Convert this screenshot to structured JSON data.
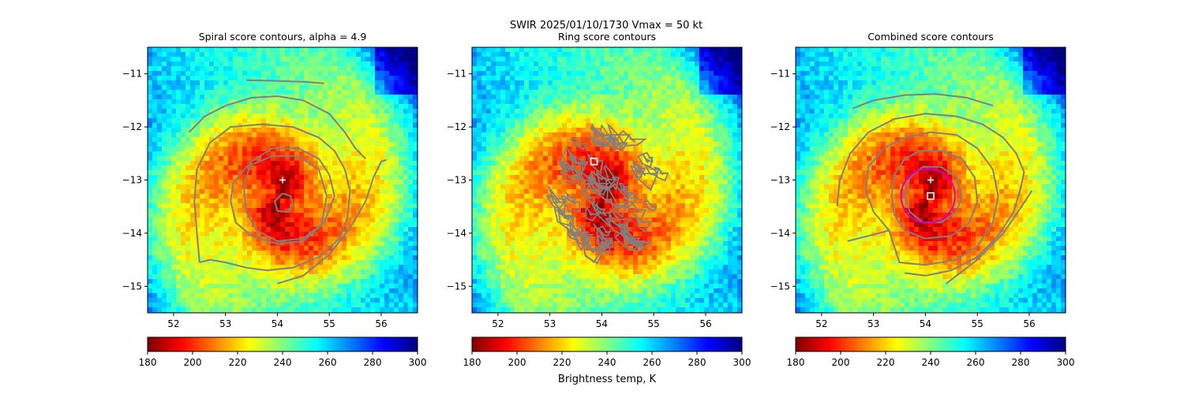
{
  "figure": {
    "suptitle_line1": "SWIR  2025/01/10/1730    Vmax = 50 kt",
    "colorbar_label": "Brightness temp, K"
  },
  "colormap": {
    "name": "jet_r",
    "stops": [
      "#800000",
      "#ff0000",
      "#ff8000",
      "#ffff00",
      "#80ff80",
      "#00ffff",
      "#0080ff",
      "#0000ff",
      "#000080"
    ]
  },
  "colors": {
    "contour": "#808080",
    "marker": "#ffffff",
    "circle": "#cc00cc",
    "axes": "#000000"
  },
  "chart_data": [
    {
      "type": "heatmap",
      "title": "Spiral score contours, alpha =  4.9",
      "xlim": [
        51.5,
        56.7
      ],
      "ylim": [
        -15.5,
        -10.5
      ],
      "xticks": [
        52,
        53,
        54,
        55,
        56
      ],
      "yticks": [
        -11,
        -12,
        -13,
        -14,
        -15
      ],
      "center_marker": {
        "x": 54.1,
        "y": -13.0
      },
      "colorbar": {
        "range": [
          180,
          300
        ],
        "ticks": [
          180,
          200,
          220,
          240,
          260,
          280,
          300
        ]
      },
      "contours": [
        [
          [
            53.4,
            -11.12
          ],
          [
            53.9,
            -11.13
          ],
          [
            54.5,
            -11.15
          ],
          [
            54.9,
            -11.18
          ]
        ],
        [
          [
            52.3,
            -12.1
          ],
          [
            52.6,
            -11.8
          ],
          [
            53.0,
            -11.6
          ],
          [
            53.5,
            -11.45
          ],
          [
            54.0,
            -11.42
          ],
          [
            54.5,
            -11.5
          ],
          [
            55.0,
            -11.75
          ],
          [
            55.3,
            -12.1
          ],
          [
            55.5,
            -12.4
          ],
          [
            55.7,
            -12.6
          ]
        ],
        [
          [
            52.5,
            -14.55
          ],
          [
            52.7,
            -14.5
          ],
          [
            53.0,
            -14.55
          ],
          [
            53.4,
            -14.65
          ],
          [
            53.8,
            -14.7
          ],
          [
            54.3,
            -14.65
          ],
          [
            54.8,
            -14.45
          ],
          [
            55.2,
            -14.1
          ],
          [
            55.35,
            -13.7
          ],
          [
            55.4,
            -13.2
          ],
          [
            55.3,
            -12.8
          ],
          [
            55.1,
            -12.45
          ],
          [
            54.8,
            -12.2
          ],
          [
            54.3,
            -12.0
          ],
          [
            53.7,
            -11.95
          ],
          [
            53.1,
            -12.0
          ],
          [
            52.7,
            -12.3
          ],
          [
            52.45,
            -12.8
          ],
          [
            52.4,
            -13.4
          ],
          [
            52.45,
            -14.0
          ],
          [
            52.5,
            -14.55
          ]
        ],
        [
          [
            53.4,
            -13.6
          ],
          [
            53.6,
            -13.95
          ],
          [
            54.0,
            -14.15
          ],
          [
            54.5,
            -14.1
          ],
          [
            54.9,
            -13.8
          ],
          [
            55.1,
            -13.3
          ],
          [
            55.0,
            -12.9
          ],
          [
            54.8,
            -12.6
          ],
          [
            54.4,
            -12.4
          ],
          [
            53.9,
            -12.4
          ],
          [
            53.5,
            -12.65
          ],
          [
            53.35,
            -13.1
          ],
          [
            53.4,
            -13.6
          ]
        ],
        [
          [
            53.1,
            -13.4
          ],
          [
            53.2,
            -13.8
          ],
          [
            53.5,
            -14.05
          ],
          [
            54.0,
            -14.2
          ],
          [
            54.5,
            -14.15
          ],
          [
            54.85,
            -13.85
          ],
          [
            54.95,
            -13.3
          ],
          [
            54.8,
            -12.8
          ],
          [
            54.4,
            -12.55
          ],
          [
            53.9,
            -12.55
          ],
          [
            53.4,
            -12.75
          ],
          [
            53.15,
            -13.05
          ],
          [
            53.1,
            -13.4
          ]
        ],
        [
          [
            54.1,
            -13.25
          ],
          [
            54.25,
            -13.3
          ],
          [
            54.3,
            -13.45
          ],
          [
            54.2,
            -13.6
          ],
          [
            54.0,
            -13.58
          ],
          [
            53.95,
            -13.4
          ],
          [
            54.1,
            -13.25
          ]
        ],
        [
          [
            54.0,
            -14.95
          ],
          [
            54.5,
            -14.8
          ],
          [
            55.0,
            -14.4
          ],
          [
            55.4,
            -13.9
          ],
          [
            55.7,
            -13.4
          ],
          [
            55.85,
            -12.95
          ],
          [
            56.0,
            -12.65
          ],
          [
            56.1,
            -12.62
          ]
        ]
      ]
    },
    {
      "type": "heatmap",
      "title": "Ring score contours",
      "xlim": [
        51.5,
        56.7
      ],
      "ylim": [
        -15.5,
        -10.5
      ],
      "xticks": [
        52,
        53,
        54,
        55,
        56
      ],
      "yticks": [
        -11,
        -12,
        -13,
        -14,
        -15
      ],
      "square_marker": {
        "x": 53.85,
        "y": -12.65
      },
      "contour_region": {
        "center": [
          54.15,
          -13.25
        ],
        "radius_x": 1.05,
        "radius_y": 1.15
      },
      "colorbar": {
        "range": [
          180,
          300
        ],
        "ticks": [
          180,
          200,
          220,
          240,
          260,
          280,
          300
        ],
        "label": "Brightness temp, K"
      }
    },
    {
      "type": "heatmap",
      "title": "Combined score contours",
      "xlim": [
        51.5,
        56.7
      ],
      "ylim": [
        -15.5,
        -10.5
      ],
      "xticks": [
        52,
        53,
        54,
        55,
        56
      ],
      "yticks": [
        -11,
        -12,
        -13,
        -14,
        -15
      ],
      "center_marker": {
        "x": 54.1,
        "y": -13.0
      },
      "square_marker": {
        "x": 54.1,
        "y": -13.3
      },
      "circle": {
        "x": 54.05,
        "y": -13.3,
        "radius": 0.52
      },
      "colorbar": {
        "range": [
          180,
          300
        ],
        "ticks": [
          180,
          200,
          220,
          240,
          260,
          280,
          300
        ]
      },
      "contours": [
        [
          [
            52.6,
            -11.65
          ],
          [
            53.0,
            -11.5
          ],
          [
            53.6,
            -11.4
          ],
          [
            54.2,
            -11.38
          ],
          [
            54.8,
            -11.45
          ],
          [
            55.3,
            -11.6
          ]
        ],
        [
          [
            52.3,
            -13.5
          ],
          [
            52.35,
            -13.0
          ],
          [
            52.55,
            -12.5
          ],
          [
            52.9,
            -12.1
          ],
          [
            53.4,
            -11.85
          ],
          [
            54.0,
            -11.75
          ],
          [
            54.6,
            -11.8
          ],
          [
            55.1,
            -11.95
          ],
          [
            55.5,
            -12.2
          ],
          [
            55.75,
            -12.5
          ],
          [
            55.9,
            -12.85
          ],
          [
            55.8,
            -13.3
          ]
        ],
        [
          [
            52.5,
            -14.15
          ],
          [
            52.9,
            -14.05
          ],
          [
            53.3,
            -13.95
          ],
          [
            53.0,
            -13.6
          ],
          [
            52.85,
            -13.2
          ],
          [
            52.9,
            -12.75
          ],
          [
            53.2,
            -12.4
          ],
          [
            53.6,
            -12.2
          ],
          [
            54.1,
            -12.1
          ],
          [
            54.6,
            -12.15
          ],
          [
            55.0,
            -12.4
          ],
          [
            55.3,
            -12.8
          ],
          [
            55.4,
            -13.3
          ],
          [
            55.3,
            -13.8
          ],
          [
            55.0,
            -14.25
          ],
          [
            54.6,
            -14.5
          ],
          [
            54.0,
            -14.6
          ],
          [
            53.5,
            -14.55
          ],
          [
            53.3,
            -13.95
          ]
        ],
        [
          [
            53.35,
            -13.3
          ],
          [
            53.4,
            -12.9
          ],
          [
            53.6,
            -12.6
          ],
          [
            53.9,
            -12.45
          ],
          [
            54.3,
            -12.45
          ],
          [
            54.7,
            -12.6
          ],
          [
            54.95,
            -12.95
          ],
          [
            55.0,
            -13.4
          ],
          [
            54.85,
            -13.8
          ],
          [
            54.5,
            -14.05
          ],
          [
            54.0,
            -14.1
          ],
          [
            53.6,
            -13.95
          ],
          [
            53.4,
            -13.65
          ],
          [
            53.35,
            -13.3
          ]
        ],
        [
          [
            53.6,
            -13.3
          ],
          [
            53.7,
            -12.95
          ],
          [
            53.95,
            -12.75
          ],
          [
            54.3,
            -12.75
          ],
          [
            54.6,
            -12.95
          ],
          [
            54.7,
            -13.3
          ],
          [
            54.6,
            -13.6
          ],
          [
            54.3,
            -13.8
          ],
          [
            53.95,
            -13.8
          ],
          [
            53.7,
            -13.6
          ],
          [
            53.6,
            -13.3
          ]
        ],
        [
          [
            53.6,
            -14.75
          ],
          [
            54.0,
            -14.8
          ],
          [
            54.5,
            -14.7
          ],
          [
            55.0,
            -14.45
          ],
          [
            55.4,
            -14.05
          ],
          [
            55.7,
            -13.6
          ],
          [
            55.85,
            -13.1
          ]
        ],
        [
          [
            54.4,
            -14.95
          ],
          [
            55.0,
            -14.5
          ],
          [
            55.5,
            -14.0
          ],
          [
            55.85,
            -13.5
          ],
          [
            56.05,
            -13.2
          ]
        ]
      ]
    }
  ]
}
